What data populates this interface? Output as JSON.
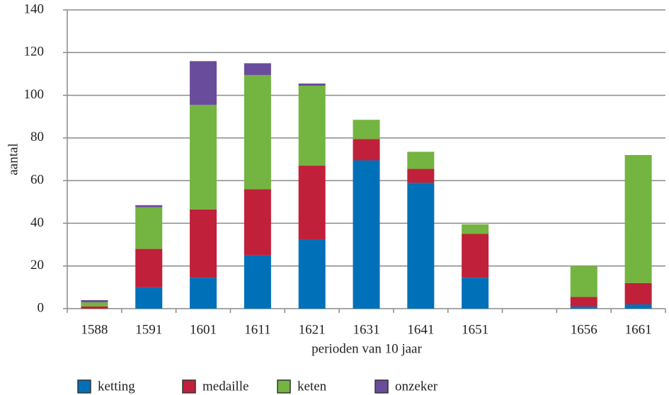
{
  "chart_data": {
    "type": "stacked_bar",
    "categories": [
      "1588",
      "1591",
      "1601",
      "1611",
      "1621",
      "1631",
      "1641",
      "1651",
      null,
      "1656",
      "1661"
    ],
    "series": [
      {
        "name": "ketting",
        "color": "#0070b8",
        "values": [
          0,
          10,
          14.5,
          25,
          32.5,
          69.5,
          59,
          14.5,
          null,
          1,
          2
        ]
      },
      {
        "name": "medaille",
        "color": "#c0203a",
        "values": [
          1,
          18,
          32,
          31,
          34.5,
          10,
          6.5,
          20.5,
          null,
          4.5,
          10
        ]
      },
      {
        "name": "keten",
        "color": "#74b440",
        "values": [
          2,
          19.5,
          49,
          53.5,
          37.5,
          9,
          8,
          4.5,
          null,
          14.5,
          60
        ]
      },
      {
        "name": "onzeker",
        "color": "#6a4c9c",
        "values": [
          1,
          1,
          20.5,
          5.5,
          1,
          0,
          0,
          0,
          null,
          0,
          0
        ]
      }
    ],
    "ylim": [
      0,
      140
    ],
    "yticks": [
      0,
      20,
      40,
      60,
      80,
      100,
      120,
      140
    ],
    "y_label": "aantal",
    "x_label": "perioden van 10 jaar",
    "grid": true
  }
}
